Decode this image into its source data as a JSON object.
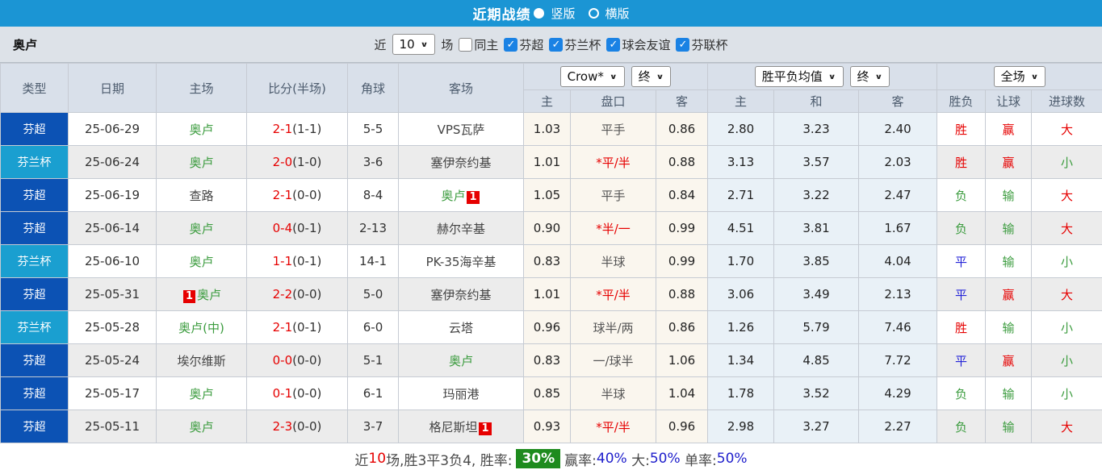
{
  "title_bar": {
    "title": "近期战绩",
    "view_options": [
      {
        "label": "竖版",
        "selected": true
      },
      {
        "label": "横版",
        "selected": false
      }
    ]
  },
  "filter_bar": {
    "team_name": "奥卢",
    "near_label": "近",
    "count_value": "10",
    "games_label": "场",
    "same_home": {
      "label": "同主",
      "checked": false
    },
    "league_filters": [
      {
        "label": "芬超",
        "checked": true
      },
      {
        "label": "芬兰杯",
        "checked": true
      },
      {
        "label": "球会友谊",
        "checked": true
      },
      {
        "label": "芬联杯",
        "checked": true
      }
    ]
  },
  "table": {
    "main_headers": [
      "类型",
      "日期",
      "主场",
      "比分(半场)",
      "角球",
      "客场"
    ],
    "dropdowns": {
      "odds_company": "Crow*",
      "odds_final": "终",
      "avg_label": "胜平负均值",
      "avg_final": "终",
      "scope": "全场"
    },
    "sub_headers": [
      "主",
      "盘口",
      "客",
      "主",
      "和",
      "客",
      "胜负",
      "让球",
      "进球数"
    ],
    "rows": [
      {
        "league": "芬超",
        "league_style": "super",
        "date": "25-06-29",
        "home": {
          "name": "奥卢",
          "green": true
        },
        "score": "2-1",
        "half": "(1-1)",
        "corner": "5-5",
        "away": {
          "name": "VPS瓦萨",
          "green": false
        },
        "crow_home": "1.03",
        "handicap": {
          "text": "平手",
          "red": false
        },
        "crow_away": "0.86",
        "avg_home": "2.80",
        "avg_draw": "3.23",
        "avg_away": "2.40",
        "result": {
          "text": "胜",
          "color": "red"
        },
        "handicap_result": {
          "text": "赢",
          "color": "red"
        },
        "goals": {
          "text": "大",
          "color": "red"
        }
      },
      {
        "league": "芬兰杯",
        "league_style": "cup",
        "date": "25-06-24",
        "home": {
          "name": "奥卢",
          "green": true
        },
        "score": "2-0",
        "half": "(1-0)",
        "corner": "3-6",
        "away": {
          "name": "塞伊奈约基",
          "green": false
        },
        "crow_home": "1.01",
        "handicap": {
          "text": "*平/半",
          "red": true
        },
        "crow_away": "0.88",
        "avg_home": "3.13",
        "avg_draw": "3.57",
        "avg_away": "2.03",
        "result": {
          "text": "胜",
          "color": "red"
        },
        "handicap_result": {
          "text": "赢",
          "color": "red"
        },
        "goals": {
          "text": "小",
          "color": "green"
        }
      },
      {
        "league": "芬超",
        "league_style": "super",
        "date": "25-06-19",
        "home": {
          "name": "查路",
          "green": false
        },
        "score": "2-1",
        "half": "(0-0)",
        "corner": "8-4",
        "away": {
          "name": "奥卢",
          "green": true,
          "badge": "1",
          "badge_pos": "after"
        },
        "crow_home": "1.05",
        "handicap": {
          "text": "平手",
          "red": false
        },
        "crow_away": "0.84",
        "avg_home": "2.71",
        "avg_draw": "3.22",
        "avg_away": "2.47",
        "result": {
          "text": "负",
          "color": "green"
        },
        "handicap_result": {
          "text": "输",
          "color": "green"
        },
        "goals": {
          "text": "大",
          "color": "red"
        }
      },
      {
        "league": "芬超",
        "league_style": "super",
        "date": "25-06-14",
        "home": {
          "name": "奥卢",
          "green": true
        },
        "score": "0-4",
        "half": "(0-1)",
        "corner": "2-13",
        "away": {
          "name": "赫尔辛基",
          "green": false
        },
        "crow_home": "0.90",
        "handicap": {
          "text": "*半/一",
          "red": true
        },
        "crow_away": "0.99",
        "avg_home": "4.51",
        "avg_draw": "3.81",
        "avg_away": "1.67",
        "result": {
          "text": "负",
          "color": "green"
        },
        "handicap_result": {
          "text": "输",
          "color": "green"
        },
        "goals": {
          "text": "大",
          "color": "red"
        }
      },
      {
        "league": "芬兰杯",
        "league_style": "cup",
        "date": "25-06-10",
        "home": {
          "name": "奥卢",
          "green": true
        },
        "score": "1-1",
        "half": "(0-1)",
        "corner": "14-1",
        "away": {
          "name": "PK-35海辛基",
          "green": false
        },
        "crow_home": "0.83",
        "handicap": {
          "text": "半球",
          "red": false
        },
        "crow_away": "0.99",
        "avg_home": "1.70",
        "avg_draw": "3.85",
        "avg_away": "4.04",
        "result": {
          "text": "平",
          "color": "blue"
        },
        "handicap_result": {
          "text": "输",
          "color": "green"
        },
        "goals": {
          "text": "小",
          "color": "green"
        }
      },
      {
        "league": "芬超",
        "league_style": "super",
        "date": "25-05-31",
        "home": {
          "name": "奥卢",
          "green": true,
          "badge": "1",
          "badge_pos": "before"
        },
        "score": "2-2",
        "half": "(0-0)",
        "corner": "5-0",
        "away": {
          "name": "塞伊奈约基",
          "green": false
        },
        "crow_home": "1.01",
        "handicap": {
          "text": "*平/半",
          "red": true
        },
        "crow_away": "0.88",
        "avg_home": "3.06",
        "avg_draw": "3.49",
        "avg_away": "2.13",
        "result": {
          "text": "平",
          "color": "blue"
        },
        "handicap_result": {
          "text": "赢",
          "color": "red"
        },
        "goals": {
          "text": "大",
          "color": "red"
        }
      },
      {
        "league": "芬兰杯",
        "league_style": "cup",
        "date": "25-05-28",
        "home": {
          "name": "奥卢(中)",
          "green": true
        },
        "score": "2-1",
        "half": "(0-1)",
        "corner": "6-0",
        "away": {
          "name": "云塔",
          "green": false
        },
        "crow_home": "0.96",
        "handicap": {
          "text": "球半/两",
          "red": false
        },
        "crow_away": "0.86",
        "avg_home": "1.26",
        "avg_draw": "5.79",
        "avg_away": "7.46",
        "result": {
          "text": "胜",
          "color": "red"
        },
        "handicap_result": {
          "text": "输",
          "color": "green"
        },
        "goals": {
          "text": "小",
          "color": "green"
        }
      },
      {
        "league": "芬超",
        "league_style": "super",
        "date": "25-05-24",
        "home": {
          "name": "埃尔维斯",
          "green": false
        },
        "score": "0-0",
        "half": "(0-0)",
        "corner": "5-1",
        "away": {
          "name": "奥卢",
          "green": true
        },
        "crow_home": "0.83",
        "handicap": {
          "text": "一/球半",
          "red": false
        },
        "crow_away": "1.06",
        "avg_home": "1.34",
        "avg_draw": "4.85",
        "avg_away": "7.72",
        "result": {
          "text": "平",
          "color": "blue"
        },
        "handicap_result": {
          "text": "赢",
          "color": "red"
        },
        "goals": {
          "text": "小",
          "color": "green"
        }
      },
      {
        "league": "芬超",
        "league_style": "super",
        "date": "25-05-17",
        "home": {
          "name": "奥卢",
          "green": true
        },
        "score": "0-1",
        "half": "(0-0)",
        "corner": "6-1",
        "away": {
          "name": "玛丽港",
          "green": false
        },
        "crow_home": "0.85",
        "handicap": {
          "text": "半球",
          "red": false
        },
        "crow_away": "1.04",
        "avg_home": "1.78",
        "avg_draw": "3.52",
        "avg_away": "4.29",
        "result": {
          "text": "负",
          "color": "green"
        },
        "handicap_result": {
          "text": "输",
          "color": "green"
        },
        "goals": {
          "text": "小",
          "color": "green"
        }
      },
      {
        "league": "芬超",
        "league_style": "super",
        "date": "25-05-11",
        "home": {
          "name": "奥卢",
          "green": true
        },
        "score": "2-3",
        "half": "(0-0)",
        "corner": "3-7",
        "away": {
          "name": "格尼斯坦",
          "green": false,
          "badge": "1",
          "badge_pos": "after"
        },
        "crow_home": "0.93",
        "handicap": {
          "text": "*平/半",
          "red": true
        },
        "crow_away": "0.96",
        "avg_home": "2.98",
        "avg_draw": "3.27",
        "avg_away": "2.27",
        "result": {
          "text": "负",
          "color": "green"
        },
        "handicap_result": {
          "text": "输",
          "color": "green"
        },
        "goals": {
          "text": "大",
          "color": "red"
        }
      }
    ]
  },
  "summary": {
    "segments": [
      {
        "text": "近",
        "style": "dark"
      },
      {
        "text": "10",
        "style": "red"
      },
      {
        "text": "场,胜3平3负4, 胜率:",
        "style": "dark"
      },
      {
        "text": "30%",
        "style": "green-badge"
      },
      {
        "text": "赢率:",
        "style": "dark"
      },
      {
        "text": "40%",
        "style": "blue"
      },
      {
        "text": " 大:",
        "style": "dark"
      },
      {
        "text": "50%",
        "style": "blue"
      },
      {
        "text": " 单率:",
        "style": "dark"
      },
      {
        "text": "50%",
        "style": "blue"
      }
    ]
  },
  "colors": {
    "title_bar_blue": "#1b95d4",
    "league_super_blue": "#0c52b4",
    "league_cup_blue": "#1a9fd0",
    "checkbox_blue": "#1a82e4",
    "win_red": "#e60000",
    "lose_green": "#3c9c3f",
    "draw_blue": "#2424d8",
    "percent_blue": "#2020cc",
    "summary_badge_green": "#1e8b1e"
  }
}
